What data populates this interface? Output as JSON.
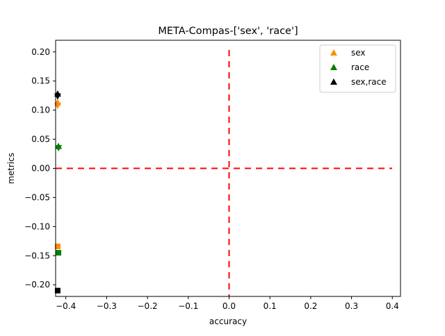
{
  "chart_data": {
    "type": "scatter",
    "title": "META-Compas-['sex', 'race']",
    "xlabel": "accuracy",
    "ylabel": "metrics",
    "xlim": [
      -0.425,
      0.42
    ],
    "ylim": [
      -0.22,
      0.22
    ],
    "x_ticks": [
      -0.4,
      -0.3,
      -0.2,
      -0.1,
      0.0,
      0.1,
      0.2,
      0.3,
      0.4
    ],
    "x_tick_labels": [
      "−0.4",
      "−0.3",
      "−0.2",
      "−0.1",
      "0.0",
      "0.1",
      "0.2",
      "0.3",
      "0.4"
    ],
    "y_ticks": [
      -0.2,
      -0.15,
      -0.1,
      -0.05,
      0.0,
      0.05,
      0.1,
      0.15,
      0.2
    ],
    "y_tick_labels": [
      "−0.20",
      "−0.15",
      "−0.10",
      "−0.05",
      "0.00",
      "0.05",
      "0.10",
      "0.15",
      "0.20"
    ],
    "grid": false,
    "legend_position": "top-right",
    "reference_lines": [
      {
        "orientation": "horizontal",
        "value": 0.0,
        "color": "#ff0000",
        "style": "dashed"
      },
      {
        "orientation": "vertical",
        "value": 0.0,
        "color": "#ff0000",
        "style": "dashed"
      }
    ],
    "series": [
      {
        "name": "sex",
        "color": "#ff8c00",
        "points": [
          {
            "x": -0.42,
            "y": 0.113,
            "marker": "triangle-up"
          },
          {
            "x": -0.42,
            "y": 0.108,
            "marker": "triangle-down"
          },
          {
            "x": -0.42,
            "y": -0.134,
            "marker": "square"
          }
        ]
      },
      {
        "name": "race",
        "color": "#008000",
        "points": [
          {
            "x": -0.418,
            "y": 0.038,
            "marker": "triangle-up"
          },
          {
            "x": -0.418,
            "y": 0.035,
            "marker": "triangle-down"
          },
          {
            "x": -0.418,
            "y": -0.145,
            "marker": "square"
          }
        ]
      },
      {
        "name": "sex,race",
        "color": "#000000",
        "points": [
          {
            "x": -0.42,
            "y": 0.128,
            "marker": "triangle-up"
          },
          {
            "x": -0.42,
            "y": 0.124,
            "marker": "triangle-down"
          },
          {
            "x": -0.42,
            "y": -0.21,
            "marker": "square"
          }
        ]
      }
    ]
  }
}
